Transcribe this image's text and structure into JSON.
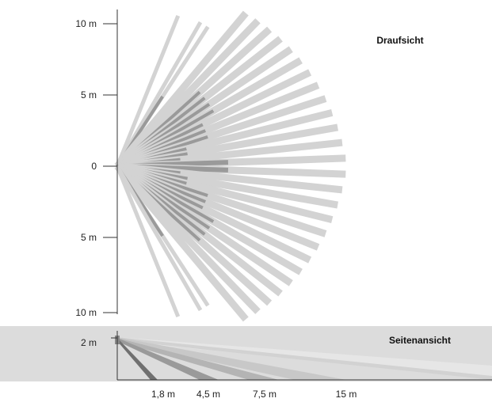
{
  "top_view": {
    "title": "Draufsicht",
    "y_labels": [
      "10 m",
      "5 m",
      "0",
      "5 m",
      "10 m"
    ]
  },
  "side_view": {
    "title": "Seitenansicht",
    "height_label": "2 m",
    "x_labels": [
      "1,8 m",
      "4,5 m",
      "7,5 m",
      "15 m"
    ]
  },
  "colors": {
    "beam_light": "#d3d3d3",
    "beam_dark": "#9a9a9a",
    "beam_darkest": "#707070",
    "side_panel_bg": "#dcdcdc",
    "axis": "#333333"
  }
}
